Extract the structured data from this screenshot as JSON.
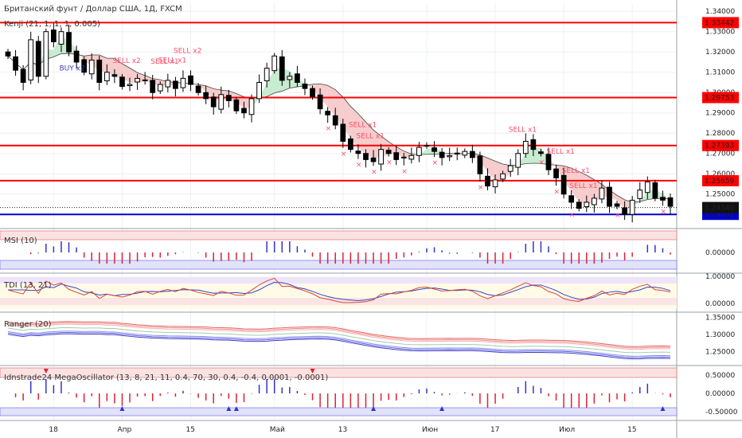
{
  "title": "Британский фунт / Доллар США, 1Д, FXCM",
  "chart_data": {
    "type": "candlestick",
    "symbol": "GBPUSD",
    "timeframe": "1Д",
    "price_axis": {
      "range": [
        1.235,
        1.344
      ],
      "ticks": [
        "1.34000",
        "1.33000",
        "1.32000",
        "1.31000",
        "1.30000",
        "1.29000",
        "1.28000",
        "1.27000",
        "1.26000",
        "1.25000"
      ]
    },
    "x_axis_labels": [
      {
        "label": "18",
        "index": 6
      },
      {
        "label": "Апр",
        "index": 15
      },
      {
        "label": "15",
        "index": 24
      },
      {
        "label": "Май",
        "index": 35
      },
      {
        "label": "13",
        "index": 44
      },
      {
        "label": "Июн",
        "index": 55
      },
      {
        "label": "17",
        "index": 64
      },
      {
        "label": "Июл",
        "index": 73
      },
      {
        "label": "15",
        "index": 82
      }
    ],
    "closes": [
      1.318,
      1.311,
      1.305,
      1.326,
      1.308,
      1.33,
      1.325,
      1.33,
      1.32,
      1.315,
      1.31,
      1.316,
      1.305,
      1.31,
      1.308,
      1.303,
      1.304,
      1.307,
      1.306,
      1.3,
      1.304,
      1.306,
      1.302,
      1.307,
      1.304,
      1.3,
      1.297,
      1.293,
      1.299,
      1.296,
      1.291,
      1.29,
      1.297,
      1.305,
      1.312,
      1.318,
      1.306,
      1.308,
      1.305,
      1.302,
      1.298,
      1.292,
      1.289,
      1.284,
      1.276,
      1.272,
      1.27,
      1.267,
      1.266,
      1.272,
      1.27,
      1.267,
      1.268,
      1.269,
      1.273,
      1.274,
      1.271,
      1.268,
      1.269,
      1.27,
      1.271,
      1.268,
      1.26,
      1.254,
      1.257,
      1.26,
      1.264,
      1.27,
      1.276,
      1.272,
      1.27,
      1.262,
      1.258,
      1.25,
      1.246,
      1.243,
      1.246,
      1.248,
      1.253,
      1.244,
      1.244,
      1.24,
      1.247,
      1.252,
      1.256,
      1.248,
      1.247,
      1.244
    ],
    "current_price": "1.24340",
    "horizontal_levels": [
      {
        "value": 1.33442,
        "label": "1.33442",
        "color": "#ff0000"
      },
      {
        "value": 1.29753,
        "label": "1.29753",
        "color": "#ff0000"
      },
      {
        "value": 1.27393,
        "label": "1.27393",
        "color": "#ff0000"
      },
      {
        "value": 1.25659,
        "label": "1.25659",
        "color": "#ff0000"
      },
      {
        "value": 1.24002,
        "label": "1.24002",
        "color": "#0000cc"
      }
    ],
    "kenji_label": "Kenji (21, 1, 1, 1, 0.005)",
    "signals": [
      {
        "text": "SELL x2",
        "index": 15,
        "color": "#ff4d6a"
      },
      {
        "text": "SELL x1",
        "index": 20,
        "color": "#ff4d6a"
      },
      {
        "text": "SELL x1",
        "index": 21,
        "color": "#ff4d6a"
      },
      {
        "text": "SELL x2",
        "index": 23,
        "color": "#ff4d6a"
      },
      {
        "text": "BUY x2",
        "index": 8,
        "color": "#4040cc"
      },
      {
        "text": "SELL x1",
        "index": 46,
        "color": "#ff4d6a"
      },
      {
        "text": "SELL x1",
        "index": 47,
        "color": "#ff4d6a"
      },
      {
        "text": "SELL x1",
        "index": 67,
        "color": "#ff4d6a"
      },
      {
        "text": "SELL x1",
        "index": 72,
        "color": "#ff4d6a"
      },
      {
        "text": "SELL x1",
        "index": 74,
        "color": "#ff4d6a"
      },
      {
        "text": "SELL x1",
        "index": 75,
        "color": "#ff4d6a"
      }
    ],
    "indicators": [
      {
        "name": "MSI (10)",
        "axis_label": "0.00000"
      },
      {
        "name": "TDI (13, 21)",
        "axis_labels": [
          "1.00000",
          "0.00000"
        ]
      },
      {
        "name": "Ranger (20)",
        "axis_labels": [
          "1.35000",
          "1.30000",
          "1.25000"
        ]
      },
      {
        "name": "Idnstrade24 MegaOscillator (13, 8, 21, 11, 0.4, 70, 30, 0.4, -0.4, 0.0001, -0.0001)",
        "axis_labels": [
          "0.50000",
          "0.00000",
          "-0.50000"
        ]
      }
    ],
    "colors": {
      "bull": "#ffffff",
      "bear": "#000000",
      "cloud_up": "#c8ecd0",
      "cloud_down": "#f6cccc",
      "level_red": "#ff0000",
      "level_blue": "#0000cc"
    }
  }
}
